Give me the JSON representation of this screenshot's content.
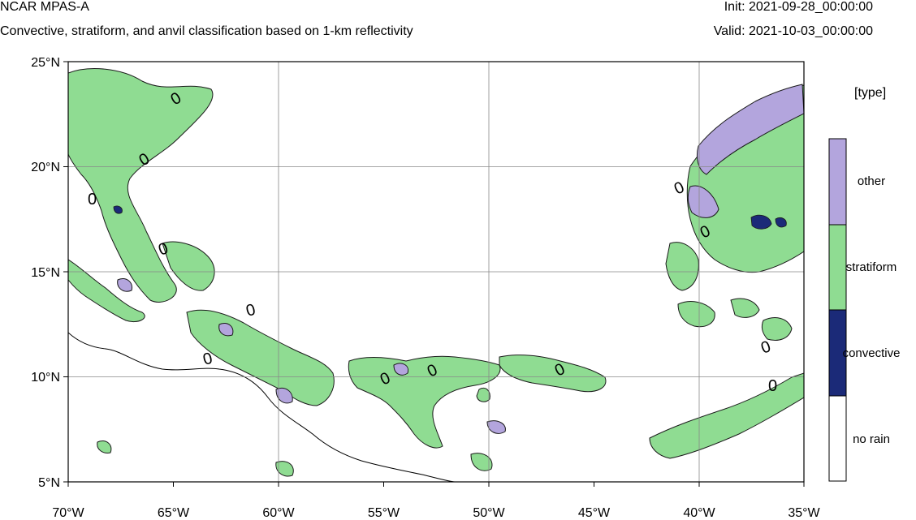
{
  "header": {
    "title": "NCAR MPAS-A",
    "subtitle": "Convective, stratiform, and anvil classification based on 1-km reflectivity",
    "init": "Init: 2021-09-28_00:00:00",
    "valid": "Valid: 2021-10-03_00:00:00"
  },
  "map": {
    "lat_labels": [
      "25°N",
      "20°N",
      "15°N",
      "10°N",
      "5°N"
    ],
    "lon_labels": [
      "70°W",
      "65°W",
      "60°W",
      "55°W",
      "50°W",
      "45°W",
      "40°W",
      "35°W"
    ],
    "lat_range": [
      5,
      25
    ],
    "lon_range": [
      -70,
      -35
    ],
    "contour_label": "0"
  },
  "legend": {
    "title": "[type]",
    "items": [
      {
        "label": "other",
        "color": "#b3a5dd"
      },
      {
        "label": "stratiform",
        "color": "#8fdc92"
      },
      {
        "label": "convective",
        "color": "#1b2a78"
      },
      {
        "label": "no rain",
        "color": "#ffffff"
      }
    ]
  },
  "colors": {
    "other": "#b3a5dd",
    "stratiform": "#8fdc92",
    "convective": "#1b2a78",
    "coastline": "#000000",
    "grid": "#888888"
  }
}
